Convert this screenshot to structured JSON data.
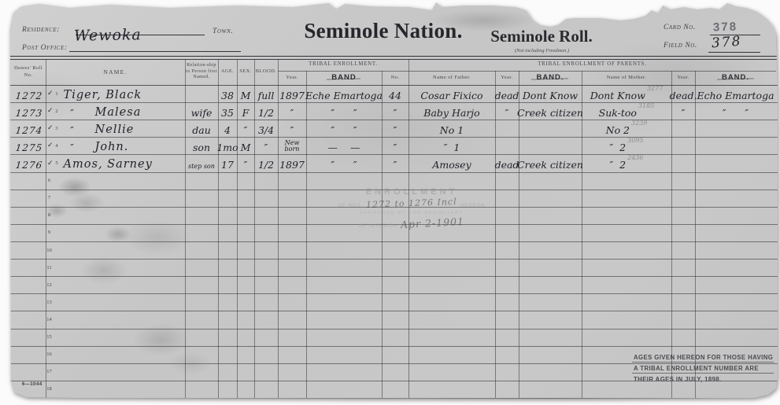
{
  "header": {
    "residence_label": "Residence:",
    "town_label": "Town.",
    "post_office_label": "Post Office:",
    "post_office_value": "Wewoka",
    "title": "Seminole Nation.",
    "subtitle": "Seminole Roll.",
    "subtitle_note": "(Not including Freedmen.)",
    "card_no_label": "Card No.",
    "card_no_value": "378",
    "field_no_label": "Field No.",
    "field_no_value": "378"
  },
  "table": {
    "columns": {
      "roll": "Dawes' Roll No.",
      "name": "NAME.",
      "rel": "Relation-ship to Person first Named.",
      "age": "AGE.",
      "sex": "SEX.",
      "blood": "BLOOD.",
      "tribal_group": "TRIBAL ENROLLMENT.",
      "parents_group": "TRIBAL ENROLLMENT OF PARENTS.",
      "year": "Year.",
      "band": "BAND",
      "no": "No.",
      "father": "Name of Father.",
      "band_dot": "BAND.",
      "mother": "Name of Mother."
    },
    "rows": [
      {
        "num": "1",
        "check": "✓",
        "roll": "1272",
        "prefix": "",
        "name": "Tiger, Black",
        "rel": "",
        "age": "38",
        "sex": "M",
        "blood": "full",
        "year": "1897",
        "band": "Eche Emartoga",
        "no": "44",
        "father": "Cosar Fixico",
        "f_year": "dead",
        "f_band": "Dont Know",
        "mother": "Dont Know",
        "m_no": "3277",
        "m_year": "dead.",
        "m_band": "Echo Emartoga"
      },
      {
        "num": "2",
        "check": "✓",
        "roll": "1273",
        "prefix": "″",
        "name": "Malesa",
        "rel": "wife",
        "age": "35",
        "sex": "F",
        "blood": "1/2",
        "year": "″",
        "band": "″      ″",
        "no": "″",
        "father": "Baby Harjo",
        "f_year": "″",
        "f_band": "Creek citizen",
        "mother": "Suk-too",
        "m_no": "3185",
        "m_year": "″",
        "m_band": "″      ″"
      },
      {
        "num": "3",
        "check": "✓",
        "roll": "1274",
        "prefix": "″",
        "name": "Nellie",
        "rel": "dau",
        "age": "4",
        "sex": "″",
        "blood": "3/4",
        "year": "″",
        "band": "″      ″",
        "no": "″",
        "father": "No 1",
        "f_year": "",
        "f_band": "",
        "mother": "No 2",
        "m_no": "3239",
        "m_year": "",
        "m_band": ""
      },
      {
        "num": "4",
        "check": "✓",
        "roll": "1275",
        "prefix": "″",
        "name": "John.",
        "rel": "son",
        "age": "1mo",
        "sex": "M",
        "blood": "″",
        "year": "New born",
        "band": "—    —",
        "no": "″",
        "father": "″  1",
        "f_year": "",
        "f_band": "",
        "mother": "″  2",
        "m_no": "3095",
        "m_year": "",
        "m_band": ""
      },
      {
        "num": "5",
        "check": "✓",
        "roll": "1276",
        "prefix": "",
        "name": "Amos, Sarney",
        "rel": "step son",
        "age": "17",
        "sex": "″",
        "blood": "1/2",
        "year": "1897",
        "band": "″      ″",
        "no": "″",
        "father": "Amosey",
        "f_year": "dead",
        "f_band": "Creek citizen",
        "mother": "″  2",
        "m_no": "2436",
        "m_year": "",
        "m_band": ""
      },
      {
        "num": "6"
      },
      {
        "num": "7"
      },
      {
        "num": "8"
      },
      {
        "num": "9"
      },
      {
        "num": "10"
      },
      {
        "num": "11"
      },
      {
        "num": "12"
      },
      {
        "num": "13"
      },
      {
        "num": "14"
      },
      {
        "num": "15"
      },
      {
        "num": "16"
      },
      {
        "num": "17"
      },
      {
        "num": "18"
      }
    ]
  },
  "stamp": {
    "line1": "ENROLLMENT",
    "line2_prefix": "OF NOS.",
    "line2_hand": "1272 to 1276 Incl",
    "line2_suffix": "HEREON",
    "line3": "APPROVED BY THE SECRETARY",
    "line4_prefix": "OF INTERIOR",
    "line4_hand": "Apr 2-1901"
  },
  "footer": {
    "form_number": "6—1044",
    "note_lines": [
      "AGES GIVEN HEREON FOR THOSE HAVING",
      "A TRIBAL ENROLLMENT NUMBER ARE",
      "THEIR AGES IN JULY, 1898."
    ]
  }
}
